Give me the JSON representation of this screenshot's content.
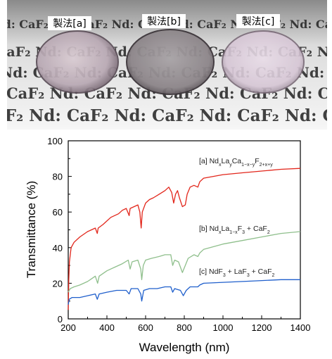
{
  "photo": {
    "labels": [
      "製法[a]",
      "製法[b]",
      "製法[c]"
    ],
    "background_text": "Nd: CaF₂ Nd: CaF₂ Nd: CaF₂ Nd: CaF₂"
  },
  "chart_data": {
    "type": "line",
    "xlabel": "Wavelength (nm)",
    "ylabel": "Transmittance (%)",
    "xlim": [
      200,
      1400
    ],
    "ylim": [
      0,
      100
    ],
    "xticks": [
      200,
      400,
      600,
      800,
      1000,
      1200,
      1400
    ],
    "yticks": [
      0,
      20,
      40,
      60,
      80,
      100
    ],
    "grid": false,
    "legend": "inline labels on right",
    "series": [
      {
        "name": "[a] NdₓLaᵧCa₁₋ₓ₋ᵧF₂₊ₓ₊ᵧ",
        "color": "#e2261b",
        "points": [
          [
            200,
            5
          ],
          [
            203,
            22
          ],
          [
            206,
            32
          ],
          [
            215,
            40
          ],
          [
            230,
            43
          ],
          [
            260,
            46
          ],
          [
            300,
            49
          ],
          [
            340,
            51
          ],
          [
            350,
            48
          ],
          [
            355,
            51
          ],
          [
            380,
            53
          ],
          [
            420,
            57
          ],
          [
            460,
            59
          ],
          [
            480,
            61
          ],
          [
            500,
            62
          ],
          [
            515,
            58
          ],
          [
            520,
            62
          ],
          [
            540,
            63
          ],
          [
            560,
            64
          ],
          [
            570,
            60
          ],
          [
            577,
            51
          ],
          [
            583,
            60
          ],
          [
            600,
            65
          ],
          [
            620,
            67
          ],
          [
            640,
            68
          ],
          [
            670,
            70
          ],
          [
            700,
            72
          ],
          [
            720,
            74
          ],
          [
            735,
            71
          ],
          [
            745,
            65
          ],
          [
            755,
            70
          ],
          [
            765,
            72
          ],
          [
            775,
            68
          ],
          [
            790,
            63
          ],
          [
            805,
            64
          ],
          [
            815,
            70
          ],
          [
            830,
            74
          ],
          [
            850,
            75
          ],
          [
            870,
            74
          ],
          [
            880,
            77
          ],
          [
            900,
            79
          ],
          [
            950,
            80
          ],
          [
            1000,
            81
          ],
          [
            1100,
            82
          ],
          [
            1200,
            83
          ],
          [
            1300,
            84
          ],
          [
            1400,
            84.5
          ]
        ]
      },
      {
        "name": "[b] NdₓLa₁₋ₓF₃ + CaF₂",
        "color": "#8fbf8c",
        "points": [
          [
            200,
            15
          ],
          [
            210,
            17
          ],
          [
            230,
            18
          ],
          [
            260,
            19
          ],
          [
            300,
            21
          ],
          [
            340,
            24
          ],
          [
            352,
            20
          ],
          [
            360,
            24
          ],
          [
            400,
            27
          ],
          [
            440,
            29
          ],
          [
            480,
            31
          ],
          [
            510,
            33
          ],
          [
            520,
            28
          ],
          [
            530,
            32
          ],
          [
            560,
            33
          ],
          [
            575,
            28
          ],
          [
            580,
            22
          ],
          [
            588,
            30
          ],
          [
            600,
            33
          ],
          [
            630,
            34
          ],
          [
            670,
            35
          ],
          [
            700,
            36
          ],
          [
            730,
            36
          ],
          [
            740,
            30
          ],
          [
            750,
            33
          ],
          [
            770,
            32
          ],
          [
            790,
            26
          ],
          [
            805,
            30
          ],
          [
            820,
            34
          ],
          [
            850,
            36
          ],
          [
            870,
            35
          ],
          [
            880,
            37
          ],
          [
            900,
            39
          ],
          [
            1000,
            42
          ],
          [
            1100,
            44
          ],
          [
            1200,
            46
          ],
          [
            1300,
            48
          ],
          [
            1400,
            49
          ]
        ]
      },
      {
        "name": "[c] NdF₃ + LaF₃ + CaF₂",
        "color": "#1f5fcc",
        "points": [
          [
            200,
            8
          ],
          [
            205,
            11
          ],
          [
            220,
            12
          ],
          [
            260,
            12
          ],
          [
            300,
            13
          ],
          [
            340,
            14
          ],
          [
            350,
            11
          ],
          [
            360,
            14
          ],
          [
            400,
            15
          ],
          [
            450,
            16
          ],
          [
            500,
            16
          ],
          [
            515,
            14
          ],
          [
            525,
            17
          ],
          [
            560,
            17
          ],
          [
            575,
            14
          ],
          [
            580,
            10
          ],
          [
            590,
            16
          ],
          [
            620,
            17
          ],
          [
            660,
            17
          ],
          [
            700,
            18
          ],
          [
            730,
            18
          ],
          [
            740,
            15
          ],
          [
            750,
            17
          ],
          [
            780,
            16
          ],
          [
            795,
            13
          ],
          [
            810,
            16
          ],
          [
            830,
            18
          ],
          [
            870,
            18
          ],
          [
            880,
            19
          ],
          [
            900,
            20
          ],
          [
            1000,
            20.5
          ],
          [
            1100,
            21
          ],
          [
            1200,
            21.5
          ],
          [
            1300,
            22
          ],
          [
            1400,
            22
          ]
        ]
      }
    ]
  }
}
